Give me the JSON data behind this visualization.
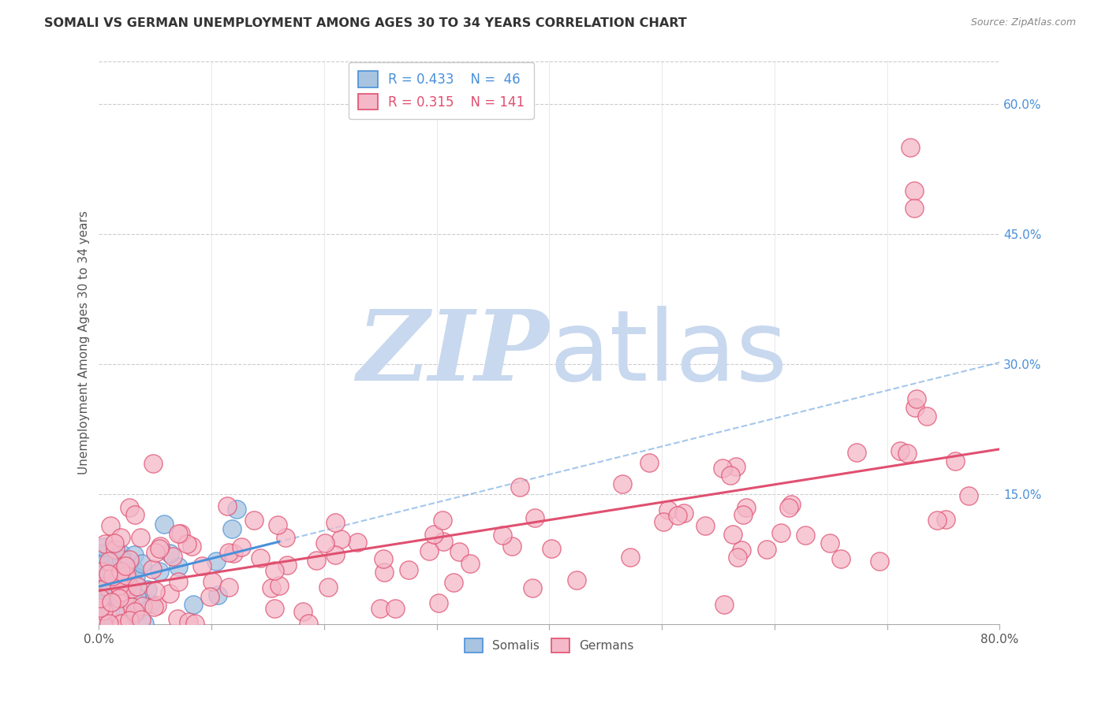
{
  "title": "SOMALI VS GERMAN UNEMPLOYMENT AMONG AGES 30 TO 34 YEARS CORRELATION CHART",
  "source": "Source: ZipAtlas.com",
  "ylabel": "Unemployment Among Ages 30 to 34 years",
  "xlim": [
    0.0,
    0.8
  ],
  "ylim": [
    0.0,
    0.65
  ],
  "xtick_labels": [
    "0.0%",
    "",
    "",
    "",
    "",
    "",
    "",
    "",
    "80.0%"
  ],
  "ytick_labels_right": [
    "15.0%",
    "30.0%",
    "45.0%",
    "60.0%"
  ],
  "ytick_vals_right": [
    0.15,
    0.3,
    0.45,
    0.6
  ],
  "somali_R": 0.433,
  "somali_N": 46,
  "german_R": 0.315,
  "german_N": 141,
  "somali_color": "#a8c4e0",
  "somali_line_color": "#4a90d9",
  "german_color": "#f4b8c8",
  "german_line_color": "#e05070",
  "watermark_zip": "ZIP",
  "watermark_atlas": "atlas",
  "watermark_color_zip": "#c8d8ee",
  "watermark_color_atlas": "#c8d8ee",
  "background_color": "#ffffff",
  "grid_color": "#cccccc",
  "title_color": "#333333"
}
